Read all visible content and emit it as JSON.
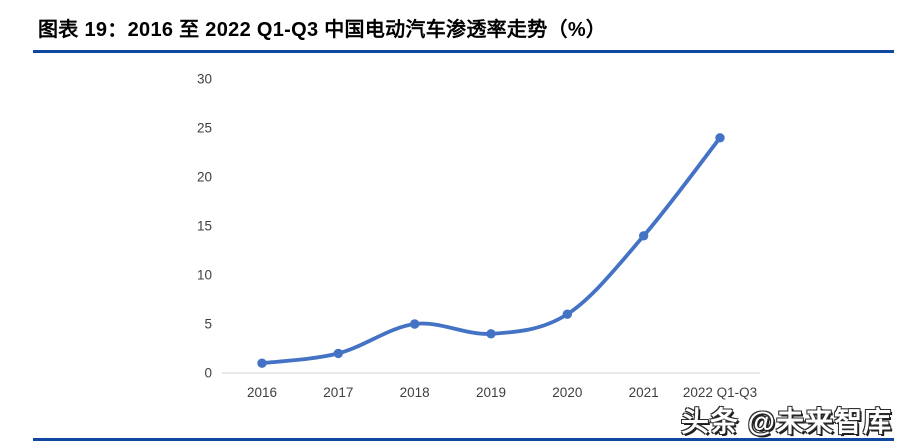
{
  "page": {
    "title": "图表 19：2016 至 2022 Q1-Q3 中国电动汽车渗透率走势（%）",
    "watermark": "头条 @未来智库",
    "accent_color": "#10489F"
  },
  "chart_data": {
    "type": "line",
    "title": "2016 至 2022 Q1-Q3 中国电动汽车渗透率走势（%）",
    "categories": [
      "2016",
      "2017",
      "2018",
      "2019",
      "2020",
      "2021",
      "2022 Q1-Q3"
    ],
    "values": [
      1,
      2,
      5,
      4,
      6,
      14,
      24
    ],
    "xlabel": "",
    "ylabel": "",
    "ylim": [
      0,
      30
    ],
    "yticks": [
      0,
      5,
      10,
      15,
      20,
      25,
      30
    ],
    "grid": false,
    "legend": false,
    "smooth": true,
    "line_color": "#4472C4",
    "marker_color": "#4472C4",
    "axis_line_color": "#D9D9D9",
    "tick_label_color": "#3f3f3f"
  }
}
